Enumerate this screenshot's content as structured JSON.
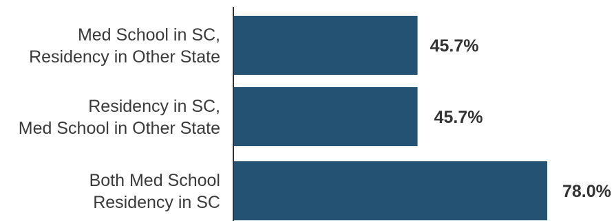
{
  "chart_data": {
    "type": "bar",
    "orientation": "horizontal",
    "title": "",
    "xlabel": "",
    "ylabel": "",
    "categories": [
      [
        "Med School in SC,",
        "Residency in Other State"
      ],
      [
        "Residency in SC,",
        "Med School in Other State"
      ],
      [
        "Both Med School",
        "Residency in SC"
      ]
    ],
    "values": [
      45.7,
      45.7,
      78.0
    ],
    "value_labels": [
      "45.7%",
      "45.7%",
      "78.0%"
    ],
    "xlim": [
      0,
      78
    ],
    "grid": false,
    "legend": "none",
    "bar_color": "#245273"
  }
}
